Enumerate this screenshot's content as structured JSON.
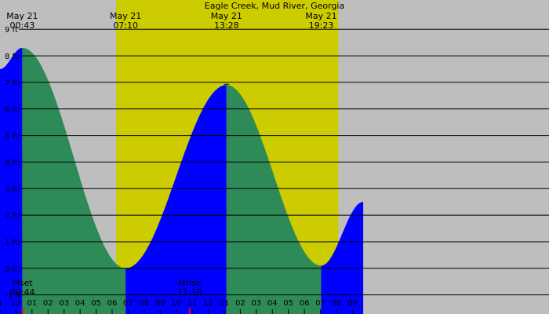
{
  "chart_data": {
    "type": "area",
    "title": "Eagle Creek, Mud River, Georgia",
    "xlabel": "",
    "ylabel": "",
    "x_unit": "hours from midnight May 21",
    "xlim": [
      -0.67,
      33.6
    ],
    "ylim": [
      -1.72,
      10.1
    ],
    "y_ticks": [
      {
        "value": -1,
        "label": "-1 ft"
      },
      {
        "value": 0,
        "label": "0 ft"
      },
      {
        "value": 1,
        "label": "1 ft"
      },
      {
        "value": 2,
        "label": "2 ft"
      },
      {
        "value": 3,
        "label": "3 ft"
      },
      {
        "value": 4,
        "label": "4 ft"
      },
      {
        "value": 5,
        "label": "5 ft"
      },
      {
        "value": 6,
        "label": "6 ft"
      },
      {
        "value": 7,
        "label": "7 ft"
      },
      {
        "value": 8,
        "label": "8 ft"
      },
      {
        "value": 9,
        "label": "9 ft"
      }
    ],
    "x_ticks": [
      {
        "value": -0.67,
        "label": "1"
      },
      {
        "value": 0.33,
        "label": "12"
      },
      {
        "value": 1.33,
        "label": "01"
      },
      {
        "value": 2.33,
        "label": "02"
      },
      {
        "value": 3.33,
        "label": "03"
      },
      {
        "value": 4.33,
        "label": "04"
      },
      {
        "value": 5.33,
        "label": "05"
      },
      {
        "value": 6.33,
        "label": "06"
      },
      {
        "value": 7.33,
        "label": "07"
      },
      {
        "value": 8.33,
        "label": "08"
      },
      {
        "value": 9.33,
        "label": "09"
      },
      {
        "value": 10.33,
        "label": "10"
      },
      {
        "value": 11.33,
        "label": "11"
      },
      {
        "value": 12.33,
        "label": "12"
      },
      {
        "value": 13.33,
        "label": "01"
      },
      {
        "value": 14.33,
        "label": "02"
      },
      {
        "value": 15.33,
        "label": "03"
      },
      {
        "value": 16.33,
        "label": "04"
      },
      {
        "value": 17.33,
        "label": "05"
      },
      {
        "value": 18.33,
        "label": "06"
      },
      {
        "value": 19.33,
        "label": "07"
      },
      {
        "value": 20.33,
        "label": "08"
      },
      {
        "value": 21.33,
        "label": "09"
      }
    ],
    "extremes": [
      {
        "type": "high",
        "date": "May 21",
        "time": "00:43",
        "hour": 0.72,
        "height": 8.3
      },
      {
        "type": "low",
        "date": "May 21",
        "time": "07:10",
        "hour": 7.17,
        "height": 0.0
      },
      {
        "type": "high",
        "date": "May 21",
        "time": "13:28",
        "hour": 13.47,
        "height": 6.9
      },
      {
        "type": "low",
        "date": "May 21",
        "time": "19:23",
        "hour": 19.38,
        "height": 0.1
      }
    ],
    "series": [
      {
        "x": [
          -0.67,
          0.72,
          7.17,
          13.47,
          19.38,
          22.0
        ],
        "y": [
          7.5,
          8.3,
          0.0,
          6.9,
          0.1,
          2.5
        ]
      }
    ],
    "daylight": {
      "start_hour": 6.58,
      "end_hour": 20.45
    },
    "moon_events": [
      {
        "label": "Mset",
        "time": "00:44",
        "hour": 0.73
      },
      {
        "label": "Mrise",
        "time": "11:10",
        "hour": 11.17
      }
    ],
    "colors": {
      "night_bg": "#bebebe",
      "day_bg": "#cccc00",
      "rising": "#0000ff",
      "falling": "#2e8b57",
      "grid": "#000000",
      "moon_marker": "#ff0000"
    }
  }
}
